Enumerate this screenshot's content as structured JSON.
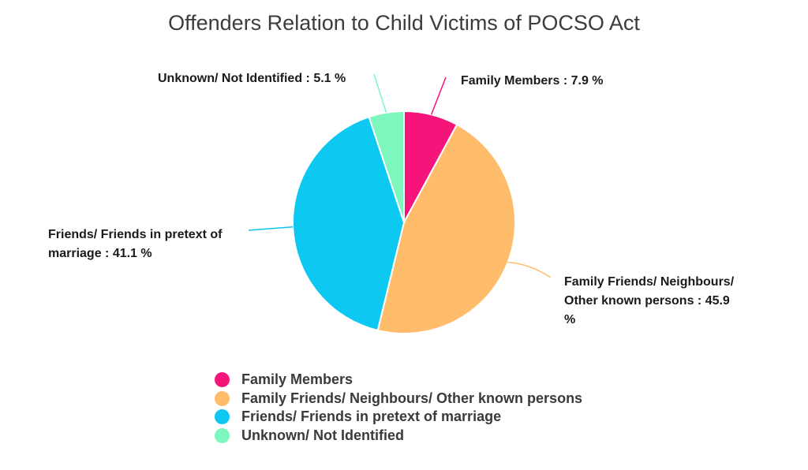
{
  "chart_data": {
    "type": "pie",
    "title": "Offenders Relation to Child Victims of POCSO Act",
    "slices": [
      {
        "name": "Family Members",
        "value": 7.9,
        "label": "Family Members : 7.9 %",
        "color": "#f5147a"
      },
      {
        "name": "Family Friends/ Neighbours/ Other known persons",
        "value": 45.9,
        "label": "Family Friends/ Neighbours/ Other known persons : 45.9 %",
        "color": "#ffbd6b"
      },
      {
        "name": "Friends/ Friends in pretext of marriage",
        "value": 41.1,
        "label": "Friends/ Friends in pretext of marriage : 41.1 %",
        "color": "#0dc8f0"
      },
      {
        "name": "Unknown/ Not Identified",
        "value": 5.1,
        "label": "Unknown/ Not Identified : 5.1 %",
        "color": "#7df7bd"
      }
    ],
    "legend_position": "bottom"
  }
}
